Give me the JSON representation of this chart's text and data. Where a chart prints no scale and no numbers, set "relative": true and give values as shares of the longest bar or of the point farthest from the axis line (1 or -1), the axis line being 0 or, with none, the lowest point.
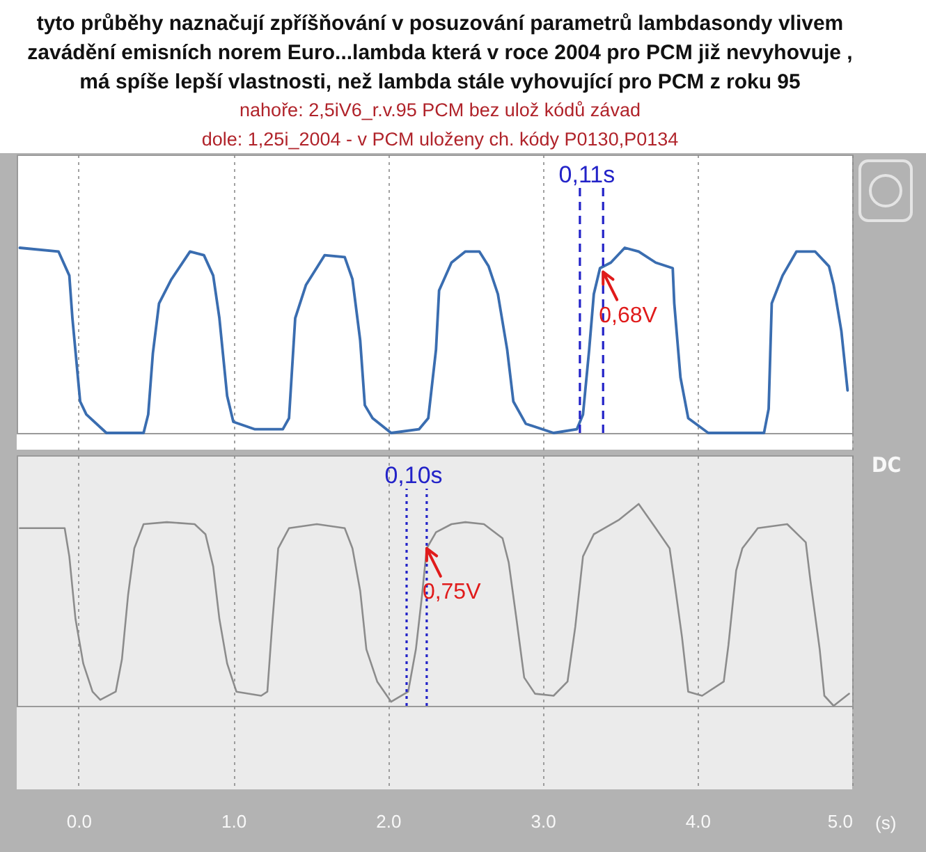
{
  "chart_data": [
    {
      "type": "line",
      "title": "tyto průběhy naznačují zpříšňování v posuzování parametrů lambdasondy vlivem\nzavádění emisních norem Euro...lambda která v roce 2004 pro PCM již nevyhovuje ,\nmá spíše lepší vlastnosti, než lambda stále vyhovující pro PCM z roku 95",
      "subtitle": "nahoře: 2,5iV6_r.v.95 PCM bez ulož kódů závad\ndole: 1,25i_2004 - v PCM uloženy ch. kódy P0130,P0134",
      "relative": true,
      "x": [
        -0.38,
        -0.13,
        -0.06,
        -0.04,
        0.01,
        0.05,
        0.18,
        0.42,
        0.45,
        0.48,
        0.52,
        0.6,
        0.72,
        0.81,
        0.87,
        0.91,
        0.96,
        1.0,
        1.14,
        1.32,
        1.36,
        1.4,
        1.47,
        1.59,
        1.72,
        1.77,
        1.82,
        1.85,
        1.9,
        2.02,
        2.2,
        2.26,
        2.31,
        2.33,
        2.41,
        2.5,
        2.59,
        2.65,
        2.71,
        2.77,
        2.81,
        2.89,
        3.07,
        3.22,
        3.26,
        3.3,
        3.33,
        3.37,
        3.44,
        3.53,
        3.62,
        3.73,
        3.84,
        3.85,
        3.89,
        3.94,
        4.07,
        4.43,
        4.46,
        4.48,
        4.55,
        4.64,
        4.76,
        4.85,
        4.88,
        4.93,
        4.97
      ],
      "series": [
        {
          "color": "#3a6db0",
          "values": [
            1.0,
            0.98,
            0.85,
            0.62,
            0.17,
            0.1,
            0,
            0,
            0.1,
            0.43,
            0.7,
            0.83,
            0.98,
            0.96,
            0.85,
            0.62,
            0.2,
            0.06,
            0.02,
            0.02,
            0.08,
            0.62,
            0.8,
            0.96,
            0.95,
            0.83,
            0.5,
            0.15,
            0.08,
            0,
            0.02,
            0.08,
            0.45,
            0.77,
            0.92,
            0.98,
            0.98,
            0.9,
            0.75,
            0.45,
            0.17,
            0.05,
            0,
            0.02,
            0.1,
            0.45,
            0.75,
            0.89,
            0.92,
            1.0,
            0.98,
            0.92,
            0.89,
            0.7,
            0.3,
            0.08,
            0,
            0,
            0.13,
            0.7,
            0.85,
            0.98,
            0.98,
            0.9,
            0.8,
            0.55,
            0.23
          ]
        }
      ],
      "xlim": [
        -0.4,
        5
      ],
      "xticks": [
        0,
        1,
        2,
        3,
        4,
        5
      ],
      "tick_labels": false,
      "grid": "x",
      "ref_lines": [
        {
          "axis": "x",
          "value": 3.24,
          "label": "0,11s",
          "color": "#2323c8",
          "line_style": "dashed"
        },
        {
          "axis": "x",
          "value": 3.39,
          "color": "#2323c8",
          "line_style": "dashed"
        }
      ],
      "annotations": [
        {
          "text": "0,68V",
          "x": 3.39,
          "y": 0.87
        }
      ]
    },
    {
      "type": "line",
      "relative": true,
      "x": [
        -0.38,
        -0.09,
        -0.06,
        -0.02,
        0.03,
        0.09,
        0.14,
        0.24,
        0.28,
        0.32,
        0.36,
        0.42,
        0.57,
        0.75,
        0.82,
        0.87,
        0.91,
        0.96,
        1.02,
        1.18,
        1.22,
        1.25,
        1.29,
        1.36,
        1.54,
        1.72,
        1.77,
        1.82,
        1.86,
        1.93,
        2.02,
        2.13,
        2.18,
        2.22,
        2.25,
        2.31,
        2.41,
        2.5,
        2.62,
        2.74,
        2.78,
        2.83,
        2.88,
        2.95,
        3.07,
        3.16,
        3.21,
        3.26,
        3.33,
        3.49,
        3.62,
        3.73,
        3.82,
        3.85,
        3.9,
        3.94,
        4.03,
        4.17,
        4.2,
        4.25,
        4.29,
        4.39,
        4.58,
        4.7,
        4.73,
        4.79,
        4.82,
        4.88,
        4.98
      ],
      "series": [
        {
          "color": "#8c8c8c",
          "values": [
            0.88,
            0.88,
            0.74,
            0.43,
            0.21,
            0.07,
            0.03,
            0.07,
            0.23,
            0.55,
            0.78,
            0.9,
            0.91,
            0.9,
            0.85,
            0.69,
            0.43,
            0.21,
            0.07,
            0.05,
            0.07,
            0.39,
            0.78,
            0.88,
            0.9,
            0.88,
            0.78,
            0.57,
            0.28,
            0.12,
            0.02,
            0.07,
            0.28,
            0.55,
            0.78,
            0.86,
            0.9,
            0.91,
            0.9,
            0.83,
            0.71,
            0.43,
            0.14,
            0.06,
            0.05,
            0.12,
            0.39,
            0.74,
            0.85,
            0.92,
            1.0,
            0.88,
            0.78,
            0.62,
            0.34,
            0.07,
            0.05,
            0.12,
            0.3,
            0.67,
            0.78,
            0.88,
            0.9,
            0.81,
            0.62,
            0.28,
            0.05,
            0,
            0.06
          ]
        }
      ],
      "xlim": [
        -0.4,
        5
      ],
      "xticks": [
        {
          "value": 0,
          "label": "0.0"
        },
        {
          "value": 1,
          "label": "1.0"
        },
        {
          "value": 2,
          "label": "2.0"
        },
        {
          "value": 3,
          "label": "3.0"
        },
        {
          "value": 4,
          "label": "4.0"
        },
        {
          "value": 5,
          "label": "5.0"
        }
      ],
      "xlabel": "(s)",
      "tick_labels": "x",
      "grid": "x",
      "ref_lines": [
        {
          "axis": "x",
          "value": 2.12,
          "label": "0,10s",
          "color": "#2323c8",
          "line_style": "dotted"
        },
        {
          "axis": "x",
          "value": 2.25,
          "color": "#2323c8",
          "line_style": "dotted"
        }
      ],
      "annotations": [
        {
          "text": "0,75V",
          "x": 2.25,
          "y": 0.78
        },
        "DC"
      ]
    }
  ]
}
